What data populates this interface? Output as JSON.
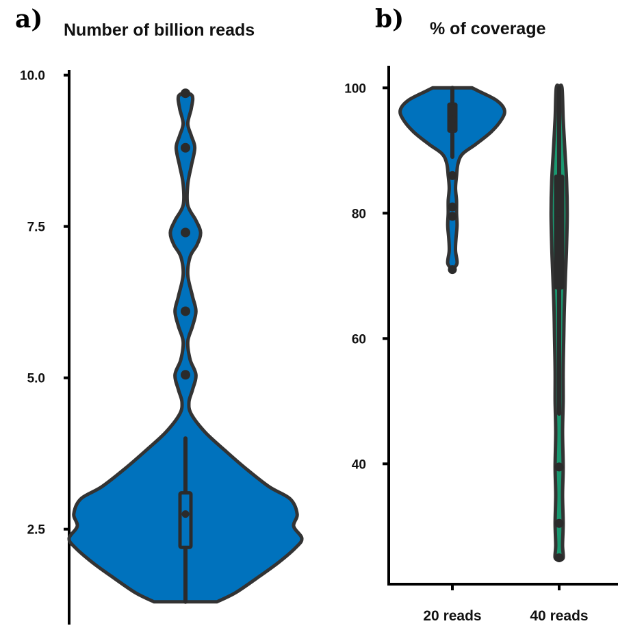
{
  "colors": {
    "outline": "#333333",
    "axis": "#000000",
    "blue": "#0072bd",
    "green": "#1a9870",
    "marker": "#2b2b2b"
  },
  "chart_data": [
    {
      "panel_label": "a)",
      "type": "violin",
      "title": "Number of billion reads",
      "xlabel": "",
      "ylabel": "",
      "ylim": [
        1.3,
        10.1
      ],
      "yticks": [
        2.5,
        5.0,
        7.5,
        10.0
      ],
      "ytick_labels": [
        "2.5",
        "5.0",
        "7.5",
        "10.0"
      ],
      "categories": [
        ""
      ],
      "violins": [
        {
          "color": "blue",
          "min": 1.3,
          "max": 9.7,
          "q1": 2.2,
          "median": 2.75,
          "q3": 3.1,
          "whisker_low": 1.3,
          "whisker_high": 4.0,
          "outliers": [
            5.05,
            6.1,
            7.4,
            8.8,
            9.7
          ],
          "density": [
            [
              1.3,
              0.27
            ],
            [
              1.45,
              0.43
            ],
            [
              1.7,
              0.62
            ],
            [
              1.95,
              0.8
            ],
            [
              2.2,
              0.95
            ],
            [
              2.35,
              1.0
            ],
            [
              2.55,
              0.93
            ],
            [
              2.75,
              0.96
            ],
            [
              3.0,
              0.9
            ],
            [
              3.2,
              0.72
            ],
            [
              3.5,
              0.52
            ],
            [
              3.8,
              0.34
            ],
            [
              4.1,
              0.17
            ],
            [
              4.4,
              0.05
            ],
            [
              4.6,
              0.03
            ],
            [
              4.8,
              0.06
            ],
            [
              5.05,
              0.09
            ],
            [
              5.3,
              0.04
            ],
            [
              5.6,
              0.02
            ],
            [
              5.85,
              0.06
            ],
            [
              6.1,
              0.09
            ],
            [
              6.35,
              0.06
            ],
            [
              6.7,
              0.02
            ],
            [
              7.0,
              0.04
            ],
            [
              7.2,
              0.1
            ],
            [
              7.4,
              0.13
            ],
            [
              7.6,
              0.09
            ],
            [
              7.85,
              0.02
            ],
            [
              8.2,
              0.02
            ],
            [
              8.5,
              0.05
            ],
            [
              8.8,
              0.08
            ],
            [
              9.0,
              0.05
            ],
            [
              9.2,
              0.02
            ],
            [
              9.45,
              0.05
            ],
            [
              9.65,
              0.06
            ],
            [
              9.72,
              0.0
            ]
          ]
        }
      ]
    },
    {
      "panel_label": "b)",
      "type": "violin",
      "title": "% of coverage",
      "xlabel": "",
      "ylabel": "",
      "ylim": [
        24,
        102
      ],
      "yticks": [
        40,
        60,
        80,
        100
      ],
      "ytick_labels": [
        "40",
        "60",
        "80",
        "100"
      ],
      "categories": [
        "20 reads",
        "40 reads"
      ],
      "violins": [
        {
          "color": "blue",
          "min": 71,
          "max": 100,
          "q1": 93,
          "median": 95,
          "q3": 97.5,
          "whisker_low": 89,
          "whisker_high": 100,
          "outliers": [
            86,
            81,
            79.5,
            71
          ],
          "density": [
            [
              71,
              0.0
            ],
            [
              72,
              0.09
            ],
            [
              74,
              0.06
            ],
            [
              76,
              0.07
            ],
            [
              78,
              0.09
            ],
            [
              80,
              0.08
            ],
            [
              82,
              0.08
            ],
            [
              84,
              0.06
            ],
            [
              86,
              0.08
            ],
            [
              88,
              0.11
            ],
            [
              89.5,
              0.2
            ],
            [
              91,
              0.45
            ],
            [
              93,
              0.75
            ],
            [
              95,
              0.95
            ],
            [
              96.5,
              1.0
            ],
            [
              98,
              0.85
            ],
            [
              99.5,
              0.5
            ],
            [
              100,
              0.38
            ]
          ]
        },
        {
          "color": "green",
          "min": 25,
          "max": 100,
          "q1": 68,
          "median": 80,
          "q3": 86,
          "whisker_low": 48,
          "whisker_high": 100,
          "outliers": [
            39.5,
            30.5,
            25
          ],
          "density": [
            [
              24.6,
              0.0
            ],
            [
              25,
              0.07
            ],
            [
              27,
              0.06
            ],
            [
              30.5,
              0.07
            ],
            [
              35,
              0.06
            ],
            [
              39.5,
              0.07
            ],
            [
              45,
              0.06
            ],
            [
              50,
              0.07
            ],
            [
              55,
              0.07
            ],
            [
              60,
              0.08
            ],
            [
              65,
              0.09
            ],
            [
              70,
              0.11
            ],
            [
              75,
              0.13
            ],
            [
              80,
              0.14
            ],
            [
              85,
              0.13
            ],
            [
              90,
              0.1
            ],
            [
              95,
              0.07
            ],
            [
              100,
              0.05
            ],
            [
              100.2,
              0.0
            ]
          ]
        }
      ]
    }
  ]
}
